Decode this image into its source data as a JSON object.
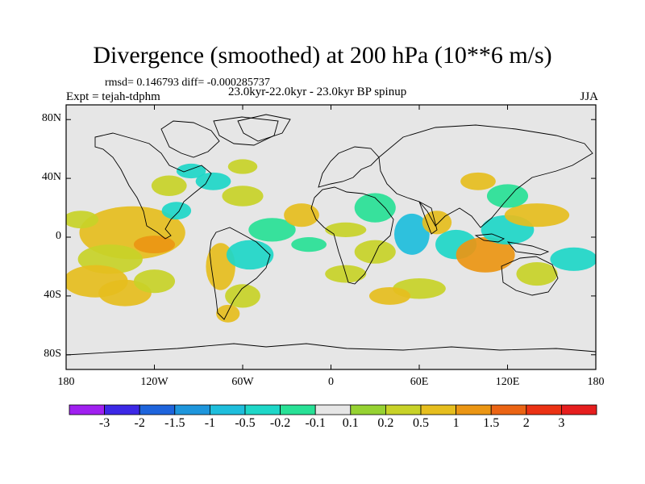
{
  "title": "Divergence (smoothed) at 200 hPa (10**6 m/s)",
  "stats": "rmsd= 0.146793 diff= -0.000285737",
  "experiment": "Expt = tejah-tdphm",
  "period": "23.0kyr-22.0kyr - 23.0kyr BP spinup",
  "season": "JJA",
  "map": {
    "projection": "cylindrical equidistant",
    "lon_range": [
      -180,
      180
    ],
    "lat_range": [
      -90,
      90
    ],
    "lat_ticks": [
      "80N",
      "40N",
      "0",
      "40S",
      "80S"
    ],
    "lon_ticks": [
      "180",
      "120W",
      "60W",
      "0",
      "60E",
      "120E",
      "180"
    ],
    "background_color": "#e6e6e6"
  },
  "colorbar": {
    "labels": [
      "-3",
      "-2",
      "-1.5",
      "-1",
      "-0.5",
      "-0.2",
      "-0.1",
      "0.1",
      "0.2",
      "0.5",
      "1",
      "1.5",
      "2",
      "3"
    ],
    "colors": [
      "#a020f0",
      "#3c28e6",
      "#1e64dc",
      "#1e96dc",
      "#1ebedc",
      "#1ed7c8",
      "#28e196",
      "#e6e6e6",
      "#96d232",
      "#c8d228",
      "#e6be1e",
      "#eb9614",
      "#eb6414",
      "#eb3214",
      "#e61e1e"
    ]
  },
  "fields": {
    "values": [
      {
        "lon": -135,
        "lat": 3,
        "rx": 36,
        "ry": 18,
        "value": 0.5
      },
      {
        "lon": -120,
        "lat": -5,
        "rx": 14,
        "ry": 6,
        "value": 1
      },
      {
        "lon": -150,
        "lat": -15,
        "rx": 22,
        "ry": 10,
        "value": 0.2
      },
      {
        "lon": -160,
        "lat": -30,
        "rx": 22,
        "ry": 11,
        "value": 0.5
      },
      {
        "lon": -140,
        "lat": -38,
        "rx": 18,
        "ry": 9,
        "value": 0.5
      },
      {
        "lon": -120,
        "lat": -30,
        "rx": 14,
        "ry": 8,
        "value": 0.2
      },
      {
        "lon": -105,
        "lat": 18,
        "rx": 10,
        "ry": 6,
        "value": -0.5
      },
      {
        "lon": -170,
        "lat": 12,
        "rx": 12,
        "ry": 6,
        "value": 0.2
      },
      {
        "lon": -110,
        "lat": 35,
        "rx": 12,
        "ry": 7,
        "value": 0.2
      },
      {
        "lon": -95,
        "lat": 45,
        "rx": 10,
        "ry": 5,
        "value": -0.5
      },
      {
        "lon": -80,
        "lat": 38,
        "rx": 12,
        "ry": 6,
        "value": -0.5
      },
      {
        "lon": -60,
        "lat": 48,
        "rx": 10,
        "ry": 5,
        "value": 0.2
      },
      {
        "lon": -60,
        "lat": 28,
        "rx": 14,
        "ry": 7,
        "value": 0.2
      },
      {
        "lon": -75,
        "lat": -20,
        "rx": 10,
        "ry": 16,
        "value": 0.5
      },
      {
        "lon": -55,
        "lat": -12,
        "rx": 16,
        "ry": 10,
        "value": -0.5
      },
      {
        "lon": -60,
        "lat": -40,
        "rx": 12,
        "ry": 8,
        "value": 0.2
      },
      {
        "lon": -70,
        "lat": -52,
        "rx": 8,
        "ry": 6,
        "value": 0.5
      },
      {
        "lon": -40,
        "lat": 5,
        "rx": 16,
        "ry": 8,
        "value": -0.2
      },
      {
        "lon": -20,
        "lat": 15,
        "rx": 12,
        "ry": 8,
        "value": 0.5
      },
      {
        "lon": -15,
        "lat": -5,
        "rx": 12,
        "ry": 5,
        "value": -0.2
      },
      {
        "lon": 10,
        "lat": 5,
        "rx": 14,
        "ry": 5,
        "value": 0.2
      },
      {
        "lon": 30,
        "lat": 20,
        "rx": 14,
        "ry": 10,
        "value": -0.2
      },
      {
        "lon": 30,
        "lat": -10,
        "rx": 14,
        "ry": 8,
        "value": 0.2
      },
      {
        "lon": 10,
        "lat": -25,
        "rx": 14,
        "ry": 6,
        "value": 0.2
      },
      {
        "lon": 55,
        "lat": 2,
        "rx": 12,
        "ry": 14,
        "value": -1
      },
      {
        "lon": 72,
        "lat": 10,
        "rx": 10,
        "ry": 8,
        "value": 0.5
      },
      {
        "lon": 85,
        "lat": -5,
        "rx": 14,
        "ry": 10,
        "value": -0.5
      },
      {
        "lon": 105,
        "lat": -12,
        "rx": 20,
        "ry": 12,
        "value": 1
      },
      {
        "lon": 120,
        "lat": 5,
        "rx": 18,
        "ry": 10,
        "value": -0.5
      },
      {
        "lon": 140,
        "lat": 15,
        "rx": 22,
        "ry": 8,
        "value": 0.5
      },
      {
        "lon": 120,
        "lat": 28,
        "rx": 14,
        "ry": 8,
        "value": -0.2
      },
      {
        "lon": 100,
        "lat": 38,
        "rx": 12,
        "ry": 6,
        "value": 0.5
      },
      {
        "lon": 165,
        "lat": -15,
        "rx": 16,
        "ry": 8,
        "value": -0.5
      },
      {
        "lon": 140,
        "lat": -25,
        "rx": 14,
        "ry": 8,
        "value": 0.2
      },
      {
        "lon": 60,
        "lat": -35,
        "rx": 18,
        "ry": 7,
        "value": 0.2
      },
      {
        "lon": 40,
        "lat": -40,
        "rx": 14,
        "ry": 6,
        "value": 0.5
      }
    ]
  }
}
